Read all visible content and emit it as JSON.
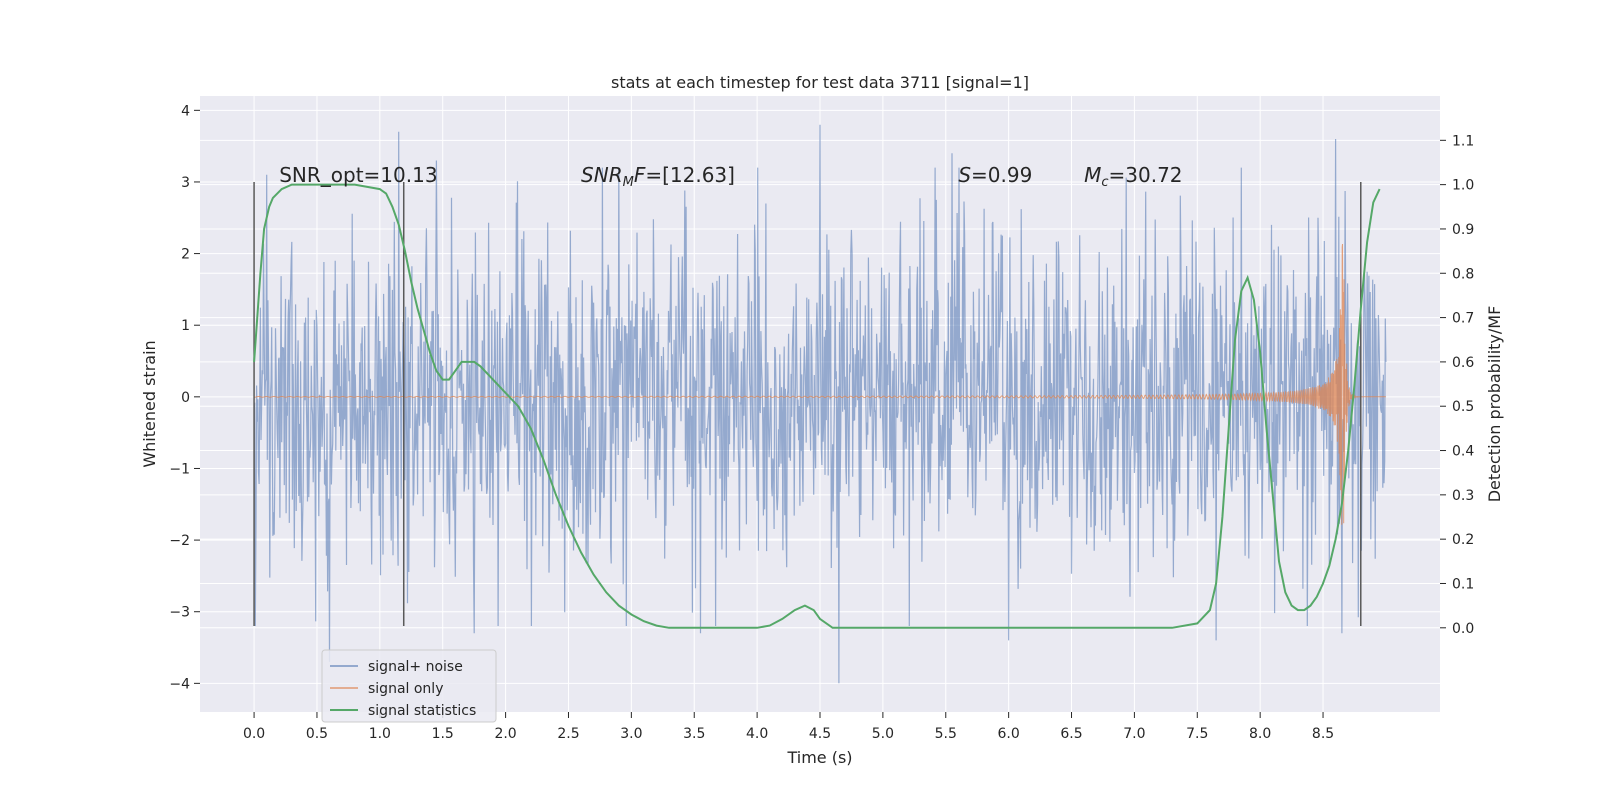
{
  "chart_data": {
    "type": "line",
    "title": "stats at each timestep for test data 3711 [signal=1]",
    "xlabel": "Time (s)",
    "ylabel": "Whitened strain",
    "y2label": "Detection probability/MF",
    "xlim": [
      -0.43,
      9.43
    ],
    "ylim": [
      -4.4,
      4.2
    ],
    "y2lim": [
      -0.19,
      1.2
    ],
    "xticks": [
      "0.0",
      "0.5",
      "1.0",
      "1.5",
      "2.0",
      "2.5",
      "3.0",
      "3.5",
      "4.0",
      "4.5",
      "5.0",
      "5.5",
      "6.0",
      "6.5",
      "7.0",
      "7.5",
      "8.0",
      "8.5"
    ],
    "yticks": [
      "4",
      "3",
      "2",
      "1",
      "0",
      "−1",
      "−2",
      "−3",
      "−4"
    ],
    "y2ticks": [
      "1.1",
      "1.0",
      "0.9",
      "0.8",
      "0.7",
      "0.6",
      "0.5",
      "0.4",
      "0.3",
      "0.2",
      "0.1",
      "0.0"
    ],
    "grid": true,
    "legend_position": "lower-left",
    "colors": {
      "background": "#eaeaf2",
      "grid": "#ffffff",
      "signal_noise": "#4c72b0",
      "signal_only": "#dd8452",
      "statistic": "#55a868",
      "markers": "#595959"
    },
    "annotations": [
      {
        "label_html": "SNR_opt=10.13",
        "x": 0.2,
        "y": 3.0
      },
      {
        "label_html": "<tspan font-style='italic'>SNR</tspan><tspan font-style='italic' font-size='13' dy='4'>M</tspan><tspan font-style='italic' dy='-4'>F</tspan>=[12.63]",
        "x": 2.6,
        "y": 3.0
      },
      {
        "label_html": "<tspan font-style='italic'>S</tspan>=0.99",
        "x": 5.6,
        "y": 3.0
      },
      {
        "label_html": "<tspan font-style='italic'>M</tspan><tspan font-style='italic' font-size='13' dy='4'>c</tspan><tspan dy='-4'>=30.72</tspan>",
        "x": 6.6,
        "y": 3.0
      }
    ],
    "vlines": [
      0.0,
      1.19,
      8.8
    ],
    "series": [
      {
        "name": "signal+ noise",
        "type": "noise-band",
        "x_range": [
          0.0,
          9.0
        ],
        "typical_range": [
          -2.5,
          2.5
        ],
        "extremes": [
          {
            "x": 0.1,
            "y": 3.1
          },
          {
            "x": 0.6,
            "y": -3.7
          },
          {
            "x": 1.15,
            "y": 3.7
          },
          {
            "x": 1.45,
            "y": 3.3
          },
          {
            "x": 1.75,
            "y": -3.3
          },
          {
            "x": 3.55,
            "y": -3.3
          },
          {
            "x": 4.5,
            "y": 3.8
          },
          {
            "x": 4.65,
            "y": -4.0
          },
          {
            "x": 5.55,
            "y": 3.4
          },
          {
            "x": 6.0,
            "y": -3.4
          },
          {
            "x": 7.65,
            "y": -3.4
          },
          {
            "x": 8.6,
            "y": 3.6
          },
          {
            "x": 8.65,
            "y": -3.3
          }
        ]
      },
      {
        "name": "signal only",
        "type": "chirp",
        "x_range": [
          0.0,
          9.0
        ],
        "merger_x": 8.66,
        "peak_amplitude": 2.5
      },
      {
        "name": "signal statistics",
        "type": "line",
        "axis": "right",
        "x": [
          0.0,
          0.05,
          0.08,
          0.12,
          0.15,
          0.22,
          0.3,
          0.5,
          0.8,
          1.0,
          1.05,
          1.1,
          1.15,
          1.2,
          1.25,
          1.3,
          1.35,
          1.4,
          1.45,
          1.5,
          1.55,
          1.6,
          1.65,
          1.7,
          1.75,
          1.8,
          1.9,
          2.0,
          2.1,
          2.2,
          2.3,
          2.4,
          2.5,
          2.6,
          2.7,
          2.8,
          2.9,
          3.0,
          3.1,
          3.2,
          3.3,
          3.4,
          3.5,
          3.7,
          3.9,
          4.0,
          4.1,
          4.2,
          4.3,
          4.38,
          4.45,
          4.5,
          4.6,
          4.8,
          5.0,
          5.5,
          6.0,
          6.5,
          7.0,
          7.3,
          7.5,
          7.6,
          7.65,
          7.7,
          7.75,
          7.8,
          7.85,
          7.9,
          7.95,
          8.0,
          8.05,
          8.1,
          8.15,
          8.2,
          8.25,
          8.3,
          8.35,
          8.4,
          8.45,
          8.5,
          8.55,
          8.6,
          8.65,
          8.7,
          8.75,
          8.8,
          8.85,
          8.9,
          8.95
        ],
        "values": [
          0.6,
          0.8,
          0.9,
          0.95,
          0.97,
          0.99,
          1.0,
          1.0,
          1.0,
          0.99,
          0.98,
          0.95,
          0.91,
          0.85,
          0.78,
          0.72,
          0.67,
          0.62,
          0.58,
          0.56,
          0.56,
          0.58,
          0.6,
          0.6,
          0.6,
          0.59,
          0.56,
          0.53,
          0.5,
          0.45,
          0.38,
          0.3,
          0.23,
          0.17,
          0.12,
          0.08,
          0.05,
          0.03,
          0.015,
          0.005,
          0.0,
          0.0,
          0.0,
          0.0,
          0.0,
          0.0,
          0.005,
          0.02,
          0.04,
          0.05,
          0.04,
          0.02,
          0.0,
          0.0,
          0.0,
          0.0,
          0.0,
          0.0,
          0.0,
          0.0,
          0.01,
          0.04,
          0.1,
          0.25,
          0.45,
          0.65,
          0.76,
          0.79,
          0.74,
          0.62,
          0.45,
          0.3,
          0.15,
          0.08,
          0.05,
          0.04,
          0.04,
          0.05,
          0.07,
          0.1,
          0.14,
          0.2,
          0.28,
          0.4,
          0.55,
          0.72,
          0.87,
          0.96,
          0.99
        ]
      }
    ]
  }
}
